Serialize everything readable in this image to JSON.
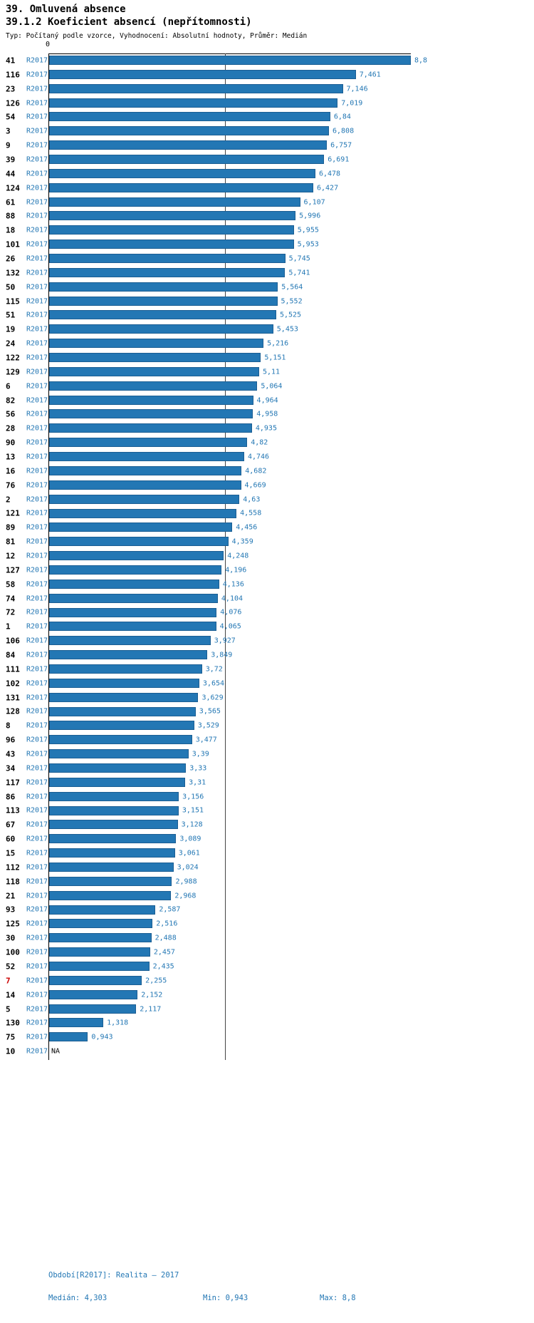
{
  "header": {
    "title": "39. Omluvená absence",
    "chart_title": "39.1.2 Koeficient absencí (nepřítomnosti)",
    "meta": "Typ: Počítaný podle vzorce, Vyhodnocení: Absolutní hodnoty, Průměr: Medián"
  },
  "chart_data": {
    "type": "bar",
    "orientation": "horizontal",
    "title": "39.1.2 Koeficient absencí (nepřítomnosti)",
    "series_label": "R2017",
    "axis": {
      "zero_label": "0",
      "min": 0,
      "max": 8.8,
      "median": 4.303
    },
    "colors": {
      "bar": "#2377b4",
      "bar_border": "#1b5e93",
      "value_label": "#2377b4",
      "row_id": "#000000",
      "row_id_highlight": "#cc0000"
    },
    "rows": [
      {
        "id": "41",
        "series": "R2017",
        "value": 8.8,
        "value_label": "8,8"
      },
      {
        "id": "116",
        "series": "R2017",
        "value": 7.461,
        "value_label": "7,461"
      },
      {
        "id": "23",
        "series": "R2017",
        "value": 7.146,
        "value_label": "7,146"
      },
      {
        "id": "126",
        "series": "R2017",
        "value": 7.019,
        "value_label": "7,019"
      },
      {
        "id": "54",
        "series": "R2017",
        "value": 6.84,
        "value_label": "6,84"
      },
      {
        "id": "3",
        "series": "R2017",
        "value": 6.808,
        "value_label": "6,808"
      },
      {
        "id": "9",
        "series": "R2017",
        "value": 6.757,
        "value_label": "6,757"
      },
      {
        "id": "39",
        "series": "R2017",
        "value": 6.691,
        "value_label": "6,691"
      },
      {
        "id": "44",
        "series": "R2017",
        "value": 6.478,
        "value_label": "6,478"
      },
      {
        "id": "124",
        "series": "R2017",
        "value": 6.427,
        "value_label": "6,427"
      },
      {
        "id": "61",
        "series": "R2017",
        "value": 6.107,
        "value_label": "6,107"
      },
      {
        "id": "88",
        "series": "R2017",
        "value": 5.996,
        "value_label": "5,996"
      },
      {
        "id": "18",
        "series": "R2017",
        "value": 5.955,
        "value_label": "5,955"
      },
      {
        "id": "101",
        "series": "R2017",
        "value": 5.953,
        "value_label": "5,953"
      },
      {
        "id": "26",
        "series": "R2017",
        "value": 5.745,
        "value_label": "5,745"
      },
      {
        "id": "132",
        "series": "R2017",
        "value": 5.741,
        "value_label": "5,741"
      },
      {
        "id": "50",
        "series": "R2017",
        "value": 5.564,
        "value_label": "5,564"
      },
      {
        "id": "115",
        "series": "R2017",
        "value": 5.552,
        "value_label": "5,552"
      },
      {
        "id": "51",
        "series": "R2017",
        "value": 5.525,
        "value_label": "5,525"
      },
      {
        "id": "19",
        "series": "R2017",
        "value": 5.453,
        "value_label": "5,453"
      },
      {
        "id": "24",
        "series": "R2017",
        "value": 5.216,
        "value_label": "5,216"
      },
      {
        "id": "122",
        "series": "R2017",
        "value": 5.151,
        "value_label": "5,151"
      },
      {
        "id": "129",
        "series": "R2017",
        "value": 5.11,
        "value_label": "5,11"
      },
      {
        "id": "6",
        "series": "R2017",
        "value": 5.064,
        "value_label": "5,064"
      },
      {
        "id": "82",
        "series": "R2017",
        "value": 4.964,
        "value_label": "4,964"
      },
      {
        "id": "56",
        "series": "R2017",
        "value": 4.958,
        "value_label": "4,958"
      },
      {
        "id": "28",
        "series": "R2017",
        "value": 4.935,
        "value_label": "4,935"
      },
      {
        "id": "90",
        "series": "R2017",
        "value": 4.82,
        "value_label": "4,82"
      },
      {
        "id": "13",
        "series": "R2017",
        "value": 4.746,
        "value_label": "4,746"
      },
      {
        "id": "16",
        "series": "R2017",
        "value": 4.682,
        "value_label": "4,682"
      },
      {
        "id": "76",
        "series": "R2017",
        "value": 4.669,
        "value_label": "4,669"
      },
      {
        "id": "2",
        "series": "R2017",
        "value": 4.63,
        "value_label": "4,63"
      },
      {
        "id": "121",
        "series": "R2017",
        "value": 4.558,
        "value_label": "4,558"
      },
      {
        "id": "89",
        "series": "R2017",
        "value": 4.456,
        "value_label": "4,456"
      },
      {
        "id": "81",
        "series": "R2017",
        "value": 4.359,
        "value_label": "4,359"
      },
      {
        "id": "12",
        "series": "R2017",
        "value": 4.248,
        "value_label": "4,248"
      },
      {
        "id": "127",
        "series": "R2017",
        "value": 4.196,
        "value_label": "4,196"
      },
      {
        "id": "58",
        "series": "R2017",
        "value": 4.136,
        "value_label": "4,136"
      },
      {
        "id": "74",
        "series": "R2017",
        "value": 4.104,
        "value_label": "4,104"
      },
      {
        "id": "72",
        "series": "R2017",
        "value": 4.076,
        "value_label": "4,076"
      },
      {
        "id": "1",
        "series": "R2017",
        "value": 4.065,
        "value_label": "4,065"
      },
      {
        "id": "106",
        "series": "R2017",
        "value": 3.927,
        "value_label": "3,927"
      },
      {
        "id": "84",
        "series": "R2017",
        "value": 3.849,
        "value_label": "3,849"
      },
      {
        "id": "111",
        "series": "R2017",
        "value": 3.72,
        "value_label": "3,72"
      },
      {
        "id": "102",
        "series": "R2017",
        "value": 3.654,
        "value_label": "3,654"
      },
      {
        "id": "131",
        "series": "R2017",
        "value": 3.629,
        "value_label": "3,629"
      },
      {
        "id": "128",
        "series": "R2017",
        "value": 3.565,
        "value_label": "3,565"
      },
      {
        "id": "8",
        "series": "R2017",
        "value": 3.529,
        "value_label": "3,529"
      },
      {
        "id": "96",
        "series": "R2017",
        "value": 3.477,
        "value_label": "3,477"
      },
      {
        "id": "43",
        "series": "R2017",
        "value": 3.39,
        "value_label": "3,39"
      },
      {
        "id": "34",
        "series": "R2017",
        "value": 3.33,
        "value_label": "3,33"
      },
      {
        "id": "117",
        "series": "R2017",
        "value": 3.31,
        "value_label": "3,31"
      },
      {
        "id": "86",
        "series": "R2017",
        "value": 3.156,
        "value_label": "3,156"
      },
      {
        "id": "113",
        "series": "R2017",
        "value": 3.151,
        "value_label": "3,151"
      },
      {
        "id": "67",
        "series": "R2017",
        "value": 3.128,
        "value_label": "3,128"
      },
      {
        "id": "60",
        "series": "R2017",
        "value": 3.089,
        "value_label": "3,089"
      },
      {
        "id": "15",
        "series": "R2017",
        "value": 3.061,
        "value_label": "3,061"
      },
      {
        "id": "112",
        "series": "R2017",
        "value": 3.024,
        "value_label": "3,024"
      },
      {
        "id": "118",
        "series": "R2017",
        "value": 2.988,
        "value_label": "2,988"
      },
      {
        "id": "21",
        "series": "R2017",
        "value": 2.968,
        "value_label": "2,968"
      },
      {
        "id": "93",
        "series": "R2017",
        "value": 2.587,
        "value_label": "2,587"
      },
      {
        "id": "125",
        "series": "R2017",
        "value": 2.516,
        "value_label": "2,516"
      },
      {
        "id": "30",
        "series": "R2017",
        "value": 2.488,
        "value_label": "2,488"
      },
      {
        "id": "100",
        "series": "R2017",
        "value": 2.457,
        "value_label": "2,457"
      },
      {
        "id": "52",
        "series": "R2017",
        "value": 2.435,
        "value_label": "2,435"
      },
      {
        "id": "7",
        "series": "R2017",
        "value": 2.255,
        "value_label": "2,255",
        "highlight": true
      },
      {
        "id": "14",
        "series": "R2017",
        "value": 2.152,
        "value_label": "2,152"
      },
      {
        "id": "5",
        "series": "R2017",
        "value": 2.117,
        "value_label": "2,117"
      },
      {
        "id": "130",
        "series": "R2017",
        "value": 1.318,
        "value_label": "1,318"
      },
      {
        "id": "75",
        "series": "R2017",
        "value": 0.943,
        "value_label": "0,943"
      },
      {
        "id": "10",
        "series": "R2017",
        "value": null,
        "value_label": "NA"
      }
    ]
  },
  "footer": {
    "period": "Období[R2017]: Realita – 2017",
    "median": "Medián: 4,303",
    "min": "Min: 0,943",
    "max": "Max: 8,8"
  }
}
